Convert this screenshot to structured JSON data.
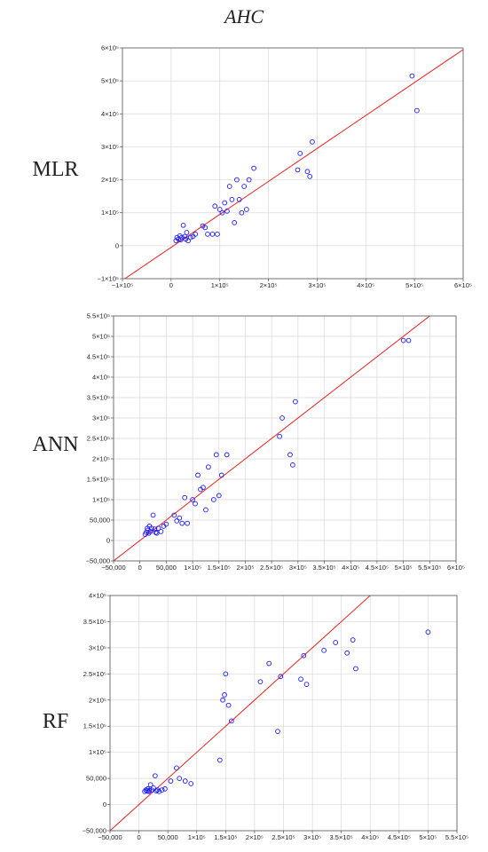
{
  "figure": {
    "title": "AHC"
  },
  "chart_data": [
    {
      "type": "scatter",
      "title": "MLR",
      "xlim": [
        -100000,
        600000
      ],
      "ylim": [
        -100000,
        600000
      ],
      "x_ticks": [
        -100000,
        0,
        100000,
        200000,
        300000,
        400000,
        500000,
        600000
      ],
      "x_tick_labels": [
        "−1×10⁵",
        "0",
        "1×10⁵",
        "2×10⁵",
        "3×10⁵",
        "4×10⁵",
        "5×10⁵",
        "6×10⁵"
      ],
      "y_ticks": [
        -100000,
        0,
        100000,
        200000,
        300000,
        400000,
        500000,
        600000
      ],
      "y_tick_labels": [
        "−1×10⁵",
        "0",
        "1×10⁵",
        "2×10⁵",
        "3×10⁵",
        "4×10⁵",
        "5×10⁵",
        "6×10⁵"
      ],
      "grid": true,
      "fit_line": {
        "slope": 1,
        "intercept": -5000
      },
      "points": [
        [
          10000,
          15000
        ],
        [
          12000,
          25000
        ],
        [
          15000,
          20000
        ],
        [
          18000,
          30000
        ],
        [
          20000,
          18000
        ],
        [
          22000,
          25000
        ],
        [
          25000,
          62000
        ],
        [
          28000,
          28000
        ],
        [
          30000,
          20000
        ],
        [
          32000,
          40000
        ],
        [
          35000,
          15000
        ],
        [
          40000,
          25000
        ],
        [
          45000,
          28000
        ],
        [
          50000,
          35000
        ],
        [
          65000,
          60000
        ],
        [
          70000,
          55000
        ],
        [
          75000,
          35000
        ],
        [
          85000,
          35000
        ],
        [
          90000,
          120000
        ],
        [
          95000,
          35000
        ],
        [
          100000,
          110000
        ],
        [
          105000,
          100000
        ],
        [
          110000,
          130000
        ],
        [
          115000,
          105000
        ],
        [
          120000,
          180000
        ],
        [
          125000,
          140000
        ],
        [
          130000,
          70000
        ],
        [
          135000,
          200000
        ],
        [
          140000,
          140000
        ],
        [
          145000,
          100000
        ],
        [
          150000,
          180000
        ],
        [
          155000,
          110000
        ],
        [
          160000,
          200000
        ],
        [
          170000,
          235000
        ],
        [
          260000,
          230000
        ],
        [
          265000,
          280000
        ],
        [
          280000,
          225000
        ],
        [
          285000,
          210000
        ],
        [
          290000,
          315000
        ],
        [
          495000,
          515000
        ],
        [
          505000,
          410000
        ]
      ]
    },
    {
      "type": "scatter",
      "title": "ANN",
      "xlim": [
        -50000,
        600000
      ],
      "ylim": [
        -50000,
        550000
      ],
      "x_ticks": [
        -50000,
        0,
        50000,
        100000,
        150000,
        200000,
        250000,
        300000,
        350000,
        400000,
        450000,
        500000,
        550000,
        600000
      ],
      "x_tick_labels": [
        "−50,000",
        "0",
        "50,000",
        "1×10⁵",
        "1.5×10⁵",
        "2×10⁵",
        "2.5×10⁵",
        "3×10⁵",
        "3.5×10⁵",
        "4×10⁵",
        "4.5×10⁵",
        "5×10⁵",
        "5.5×10⁵",
        "6×10⁵"
      ],
      "y_ticks": [
        -50000,
        0,
        50000,
        100000,
        150000,
        200000,
        250000,
        300000,
        350000,
        400000,
        450000,
        500000,
        550000
      ],
      "y_tick_labels": [
        "−50,000",
        "0",
        "50,000",
        "1×10⁵",
        "1.5×10⁵",
        "2×10⁵",
        "2.5×10⁵",
        "3×10⁵",
        "3.5×10⁵",
        "4×10⁵",
        "4.5×10⁵",
        "5×10⁵",
        "5.5×10⁵"
      ],
      "grid": true,
      "fit_line": {
        "slope": 1,
        "intercept": 0
      },
      "points": [
        [
          10000,
          15000
        ],
        [
          12000,
          20000
        ],
        [
          14000,
          30000
        ],
        [
          15000,
          25000
        ],
        [
          17000,
          18000
        ],
        [
          18000,
          35000
        ],
        [
          20000,
          22000
        ],
        [
          22000,
          30000
        ],
        [
          25000,
          62000
        ],
        [
          28000,
          28000
        ],
        [
          30000,
          20000
        ],
        [
          32000,
          18000
        ],
        [
          35000,
          30000
        ],
        [
          40000,
          22000
        ],
        [
          45000,
          35000
        ],
        [
          50000,
          40000
        ],
        [
          65000,
          62000
        ],
        [
          70000,
          48000
        ],
        [
          75000,
          55000
        ],
        [
          80000,
          42000
        ],
        [
          85000,
          105000
        ],
        [
          90000,
          42000
        ],
        [
          100000,
          100000
        ],
        [
          105000,
          90000
        ],
        [
          110000,
          160000
        ],
        [
          115000,
          125000
        ],
        [
          120000,
          130000
        ],
        [
          125000,
          75000
        ],
        [
          130000,
          180000
        ],
        [
          140000,
          100000
        ],
        [
          145000,
          210000
        ],
        [
          150000,
          110000
        ],
        [
          155000,
          160000
        ],
        [
          165000,
          210000
        ],
        [
          265000,
          255000
        ],
        [
          270000,
          300000
        ],
        [
          285000,
          210000
        ],
        [
          290000,
          185000
        ],
        [
          295000,
          340000
        ],
        [
          500000,
          490000
        ],
        [
          510000,
          490000
        ]
      ]
    },
    {
      "type": "scatter",
      "title": "RF",
      "xlim": [
        -50000,
        550000
      ],
      "ylim": [
        -50000,
        400000
      ],
      "x_ticks": [
        -50000,
        0,
        50000,
        100000,
        150000,
        200000,
        250000,
        300000,
        350000,
        400000,
        450000,
        500000,
        550000
      ],
      "x_tick_labels": [
        "−50,000",
        "0",
        "50,000",
        "1×10⁵",
        "1.5×10⁵",
        "2×10⁵",
        "2.5×10⁵",
        "3×10⁵",
        "3.5×10⁵",
        "4×10⁵",
        "4.5×10⁵",
        "5×10⁵",
        "5.5×10⁵"
      ],
      "y_ticks": [
        -50000,
        0,
        50000,
        100000,
        150000,
        200000,
        250000,
        300000,
        350000,
        400000
      ],
      "y_tick_labels": [
        "−50,000",
        "0",
        "50,000",
        "1×10⁵",
        "1.5×10⁵",
        "2×10⁵",
        "2.5×10⁵",
        "3×10⁵",
        "3.5×10⁵",
        "4×10⁵"
      ],
      "grid": true,
      "fit_line": {
        "slope": 1,
        "intercept": 0
      },
      "points": [
        [
          10000,
          25000
        ],
        [
          12000,
          28000
        ],
        [
          14000,
          26000
        ],
        [
          15000,
          30000
        ],
        [
          17000,
          25000
        ],
        [
          18000,
          27000
        ],
        [
          20000,
          38000
        ],
        [
          22000,
          28000
        ],
        [
          25000,
          32000
        ],
        [
          28000,
          55000
        ],
        [
          30000,
          26000
        ],
        [
          32000,
          28000
        ],
        [
          35000,
          25000
        ],
        [
          40000,
          28000
        ],
        [
          45000,
          30000
        ],
        [
          55000,
          45000
        ],
        [
          65000,
          70000
        ],
        [
          70000,
          50000
        ],
        [
          80000,
          45000
        ],
        [
          90000,
          40000
        ],
        [
          140000,
          85000
        ],
        [
          145000,
          200000
        ],
        [
          148000,
          210000
        ],
        [
          150000,
          250000
        ],
        [
          155000,
          190000
        ],
        [
          160000,
          160000
        ],
        [
          210000,
          235000
        ],
        [
          225000,
          270000
        ],
        [
          240000,
          140000
        ],
        [
          245000,
          245000
        ],
        [
          280000,
          240000
        ],
        [
          285000,
          285000
        ],
        [
          290000,
          230000
        ],
        [
          320000,
          295000
        ],
        [
          340000,
          310000
        ],
        [
          360000,
          290000
        ],
        [
          370000,
          315000
        ],
        [
          375000,
          260000
        ],
        [
          500000,
          330000
        ]
      ]
    }
  ]
}
